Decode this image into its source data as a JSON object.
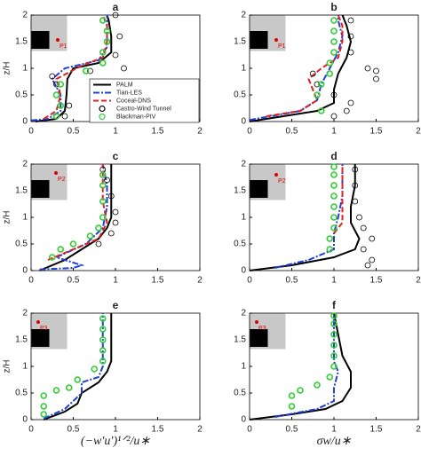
{
  "chart_data": [
    {
      "type": "line",
      "title": "a",
      "ylabel": "z/H",
      "inset_label": "P1",
      "legend": true,
      "xlim": [
        0,
        2
      ],
      "ylim": [
        0,
        2
      ],
      "xticks": [
        0,
        0.5,
        1,
        1.5,
        2
      ],
      "yticks": [
        0,
        0.5,
        1,
        1.5,
        2
      ],
      "series": [
        {
          "name": "PALM",
          "color": "#000000",
          "style": "solid",
          "x": [
            0.05,
            0.3,
            0.4,
            0.42,
            0.43,
            0.5,
            0.8,
            0.95,
            0.95,
            0.92,
            0.9
          ],
          "values": [
            0,
            0.05,
            0.2,
            0.5,
            0.8,
            1.0,
            1.1,
            1.3,
            1.6,
            1.9,
            2
          ]
        },
        {
          "name": "Tian-LES",
          "color": "#1f3fd6",
          "style": "dashdot",
          "x": [
            0,
            0.2,
            0.35,
            0.35,
            0.25,
            0.4,
            0.8,
            0.9,
            0.9,
            0.9
          ],
          "values": [
            0.02,
            0.05,
            0.2,
            0.5,
            0.8,
            1.0,
            1.15,
            1.4,
            1.7,
            2
          ]
        },
        {
          "name": "Coceal-DNS",
          "color": "#e02020",
          "style": "dashed",
          "x": [
            0.15,
            0.3,
            0.35,
            0.3,
            0.6,
            0.85,
            0.9,
            0.9,
            0.85
          ],
          "values": [
            0.05,
            0.2,
            0.5,
            0.8,
            1.05,
            1.2,
            1.5,
            1.8,
            2
          ]
        },
        {
          "name": "Castro-Wind Tunnel",
          "color": "#000000",
          "style": "circles",
          "x": [
            0.4,
            0.45,
            0.3,
            0.3,
            0.25,
            0.7,
            1.1,
            1.0,
            1.05,
            1.0
          ],
          "values": [
            0.1,
            0.3,
            0.5,
            0.7,
            0.85,
            0.95,
            1.0,
            1.25,
            1.6,
            2
          ]
        },
        {
          "name": "Blackman-PIV",
          "color": "#33cc33",
          "style": "circles",
          "x": [
            0.3,
            0.35,
            0.3,
            0.35,
            0.65,
            0.85,
            0.85,
            0.9,
            0.9,
            0.85
          ],
          "values": [
            0.1,
            0.3,
            0.5,
            0.7,
            0.95,
            1.1,
            1.3,
            1.5,
            1.7,
            1.9
          ]
        }
      ]
    },
    {
      "type": "line",
      "title": "b",
      "inset_label": "P1",
      "xlim": [
        0,
        2
      ],
      "ylim": [
        0,
        2
      ],
      "xticks": [
        0,
        0.5,
        1,
        1.5,
        2
      ],
      "yticks": [
        0,
        0.5,
        1,
        1.5,
        2
      ],
      "series": [
        {
          "color": "#000000",
          "style": "solid",
          "x": [
            0,
            0.4,
            0.8,
            1.0,
            1.0,
            1.05,
            1.15,
            1.2,
            1.15,
            1.1
          ],
          "values": [
            0,
            0.1,
            0.2,
            0.35,
            0.6,
            0.9,
            1.2,
            1.5,
            1.8,
            2
          ]
        },
        {
          "color": "#1f3fd6",
          "style": "dashdot",
          "x": [
            0,
            0.6,
            0.8,
            0.85,
            0.95,
            1.05,
            1.1,
            1.05,
            1.05
          ],
          "values": [
            0.03,
            0.2,
            0.4,
            0.7,
            1.0,
            1.3,
            1.6,
            1.9,
            2
          ]
        },
        {
          "color": "#e02020",
          "style": "dashed",
          "x": [
            0.2,
            0.6,
            0.8,
            0.7,
            0.85,
            1.05,
            1.1,
            1.1,
            1.05
          ],
          "values": [
            0.1,
            0.2,
            0.4,
            0.8,
            1.0,
            1.2,
            1.5,
            1.8,
            2
          ]
        },
        {
          "color": "#000000",
          "style": "circles",
          "x": [
            1.0,
            1.15,
            1.2,
            1.0,
            0.8,
            0.75,
            1.4,
            1.5,
            1.5,
            1.2,
            1.2,
            1.2
          ],
          "values": [
            0.1,
            0.2,
            0.35,
            0.5,
            0.7,
            0.9,
            1.0,
            0.95,
            0.8,
            1.3,
            1.6,
            1.9
          ]
        },
        {
          "color": "#33cc33",
          "style": "circles",
          "x": [
            0.85,
            0.8,
            0.85,
            0.95,
            0.95,
            1.0,
            1.0,
            1.0,
            1.0
          ],
          "values": [
            0.2,
            0.5,
            0.7,
            0.9,
            1.1,
            1.3,
            1.5,
            1.7,
            1.9
          ]
        }
      ]
    },
    {
      "type": "line",
      "title": "c",
      "ylabel": "z/H",
      "inset_label": "P2",
      "xlim": [
        0,
        2
      ],
      "ylim": [
        0,
        2
      ],
      "xticks": [
        0,
        0.5,
        1,
        1.5,
        2
      ],
      "yticks": [
        0,
        0.5,
        1,
        1.5,
        2
      ],
      "series": [
        {
          "color": "#000000",
          "style": "solid",
          "x": [
            0.1,
            0.4,
            0.6,
            0.8,
            0.9,
            0.95,
            0.95,
            0.95
          ],
          "values": [
            0,
            0.2,
            0.4,
            0.6,
            0.8,
            1.0,
            1.5,
            2
          ]
        },
        {
          "color": "#1f3fd6",
          "style": "dashdot",
          "x": [
            0.1,
            0.5,
            0.6,
            0.3,
            0.65,
            0.85,
            0.9,
            0.9,
            0.85
          ],
          "values": [
            0.02,
            0.05,
            0.1,
            0.25,
            0.5,
            0.8,
            1.2,
            1.6,
            2
          ]
        },
        {
          "color": "#e02020",
          "style": "dashed",
          "x": [
            0.2,
            0.5,
            0.8,
            0.9,
            0.85,
            0.85,
            0.85
          ],
          "values": [
            0.2,
            0.4,
            0.6,
            0.9,
            1.3,
            1.7,
            2
          ]
        },
        {
          "color": "#000000",
          "style": "circles",
          "x": [
            0.8,
            0.95,
            1.0,
            1.0,
            0.95,
            0.9,
            0.85
          ],
          "values": [
            0.5,
            0.7,
            0.9,
            1.1,
            1.4,
            1.7,
            1.9
          ]
        },
        {
          "color": "#33cc33",
          "style": "circles",
          "x": [
            0.25,
            0.35,
            0.5,
            0.7,
            0.8,
            0.85,
            0.85,
            0.85,
            0.85
          ],
          "values": [
            0.25,
            0.4,
            0.5,
            0.65,
            0.8,
            1.0,
            1.3,
            1.6,
            1.8
          ]
        }
      ]
    },
    {
      "type": "line",
      "title": "d",
      "inset_label": "P2",
      "xlim": [
        0,
        2
      ],
      "ylim": [
        0,
        2
      ],
      "xticks": [
        0,
        0.5,
        1,
        1.5,
        2
      ],
      "yticks": [
        0,
        0.5,
        1,
        1.5,
        2
      ],
      "series": [
        {
          "color": "#000000",
          "style": "solid",
          "x": [
            0,
            0.5,
            1.0,
            1.25,
            1.3,
            1.2,
            1.2,
            1.25,
            1.25
          ],
          "values": [
            0,
            0.1,
            0.25,
            0.4,
            0.6,
            0.9,
            1.2,
            1.6,
            2
          ]
        },
        {
          "color": "#1f3fd6",
          "style": "dashdot",
          "x": [
            0.3,
            0.7,
            1.0,
            1.0,
            1.05,
            1.1,
            1.1,
            1.1
          ],
          "values": [
            0.05,
            0.2,
            0.4,
            0.7,
            1.0,
            1.4,
            1.7,
            2
          ]
        },
        {
          "color": "#e02020",
          "style": "dashed",
          "x": [
            1.0,
            1.1,
            1.1,
            1.1,
            1.1
          ],
          "values": [
            0.7,
            0.9,
            1.3,
            1.7,
            2
          ]
        },
        {
          "color": "#000000",
          "style": "circles",
          "x": [
            1.4,
            1.45,
            1.35,
            1.45,
            1.35,
            1.3,
            1.25,
            1.25,
            1.25
          ],
          "values": [
            0.1,
            0.2,
            0.4,
            0.6,
            0.8,
            1.0,
            1.3,
            1.6,
            1.9
          ]
        },
        {
          "color": "#33cc33",
          "style": "circles",
          "x": [
            0.95,
            0.95,
            1.0,
            1.0,
            1.0,
            1.0,
            1.0,
            1.0,
            1.0
          ],
          "values": [
            0.4,
            0.6,
            0.8,
            1.0,
            1.2,
            1.4,
            1.6,
            1.8,
            1.95
          ]
        }
      ]
    },
    {
      "type": "line",
      "title": "e",
      "ylabel": "z/H",
      "inset_label": "P3",
      "xlabel": "(−w′u′)¹ᐟ²/u∗",
      "xlim": [
        0,
        2
      ],
      "ylim": [
        0,
        2
      ],
      "xticks": [
        0,
        0.5,
        1,
        1.5,
        2
      ],
      "yticks": [
        0,
        0.5,
        1,
        1.5,
        2
      ],
      "series": [
        {
          "color": "#000000",
          "style": "solid",
          "x": [
            0.15,
            0.4,
            0.55,
            0.6,
            0.8,
            0.9,
            0.95,
            0.95,
            0.95
          ],
          "values": [
            0,
            0.15,
            0.3,
            0.5,
            0.7,
            0.9,
            1.1,
            1.5,
            2
          ]
        },
        {
          "color": "#1f3fd6",
          "style": "dashdot",
          "x": [
            0.15,
            0.4,
            0.6,
            0.6,
            0.8,
            0.85,
            0.85,
            0.85
          ],
          "values": [
            0.02,
            0.2,
            0.5,
            0.7,
            0.8,
            1.0,
            1.4,
            2
          ]
        },
        {
          "color": "#33cc33",
          "style": "circles",
          "x": [
            0.15,
            0.15,
            0.15,
            0.3,
            0.45,
            0.55,
            0.75,
            0.85,
            0.85,
            0.85,
            0.85,
            0.85
          ],
          "values": [
            0.1,
            0.25,
            0.45,
            0.55,
            0.6,
            0.75,
            0.95,
            1.1,
            1.3,
            1.5,
            1.7,
            1.9
          ]
        }
      ]
    },
    {
      "type": "line",
      "title": "f",
      "inset_label": "P3",
      "xlabel": "σw/u∗",
      "xlim": [
        0,
        2
      ],
      "ylim": [
        0,
        2
      ],
      "xticks": [
        0,
        0.5,
        1,
        1.5,
        2
      ],
      "yticks": [
        0,
        0.5,
        1,
        1.5,
        2
      ],
      "series": [
        {
          "color": "#000000",
          "style": "solid",
          "x": [
            0,
            0.5,
            0.9,
            1.1,
            1.2,
            1.2,
            1.1,
            1.05,
            1.0
          ],
          "values": [
            0,
            0.1,
            0.2,
            0.35,
            0.6,
            0.9,
            1.2,
            1.6,
            2
          ]
        },
        {
          "color": "#1f3fd6",
          "style": "dashdot",
          "x": [
            0.3,
            0.8,
            1.0,
            1.0,
            1.05,
            1.0,
            1.0,
            1.0,
            1.0
          ],
          "values": [
            0.05,
            0.2,
            0.35,
            0.6,
            0.9,
            1.1,
            1.4,
            1.8,
            2
          ]
        },
        {
          "color": "#33cc33",
          "style": "circles",
          "x": [
            0.5,
            0.5,
            0.6,
            0.8,
            0.95,
            1.0,
            1.0,
            1.0,
            1.0,
            1.0,
            1.0
          ],
          "values": [
            0.25,
            0.45,
            0.55,
            0.65,
            0.8,
            1.0,
            1.2,
            1.4,
            1.6,
            1.8,
            1.95
          ]
        }
      ]
    }
  ]
}
